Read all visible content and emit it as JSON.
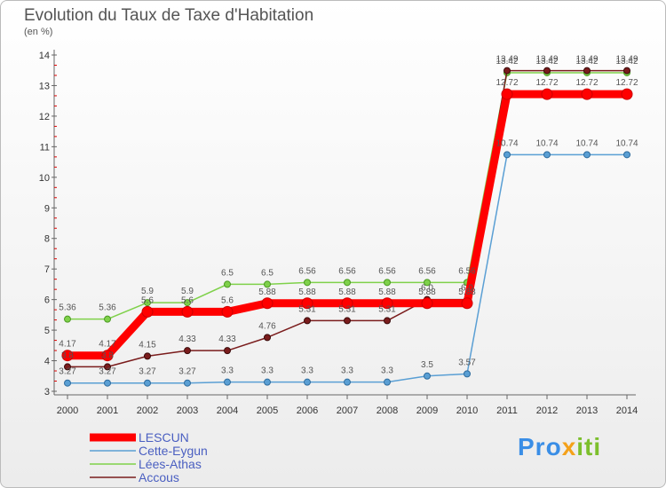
{
  "chart_data": {
    "type": "line",
    "title": "Evolution du Taux de Taxe d'Habitation",
    "ylabel": "(en %)",
    "xlabel": "",
    "x": [
      "2000",
      "2001",
      "2002",
      "2003",
      "2004",
      "2005",
      "2006",
      "2007",
      "2008",
      "2009",
      "2010",
      "2011",
      "2012",
      "2013",
      "2014"
    ],
    "ylim": [
      3,
      14
    ],
    "yticks": [
      3,
      4,
      5,
      6,
      7,
      8,
      9,
      10,
      11,
      12,
      13,
      14
    ],
    "series": [
      {
        "name": "LESCUN",
        "color": "#ff0000",
        "values": [
          4.17,
          4.17,
          5.6,
          5.6,
          5.6,
          5.88,
          5.88,
          5.88,
          5.88,
          5.88,
          5.88,
          12.72,
          12.72,
          12.72,
          12.72
        ],
        "labels": [
          "4.17",
          "4.17",
          "5.6",
          "5.6",
          "5.6",
          "5.88",
          "5.88",
          "5.88",
          "5.88",
          "5.88",
          "5.88",
          "12.72",
          "12.72",
          "12.72",
          "12.72"
        ]
      },
      {
        "name": "Cette-Eygun",
        "color": "#5a9fd4",
        "values": [
          3.27,
          3.27,
          3.27,
          3.27,
          3.3,
          3.3,
          3.3,
          3.3,
          3.3,
          3.5,
          3.57,
          10.74,
          10.74,
          10.74,
          10.74
        ],
        "labels": [
          "3.27",
          "3.27",
          "3.27",
          "3.27",
          "3.3",
          "3.3",
          "3.3",
          "3.3",
          "3.3",
          "3.5",
          "3.57",
          "10.74",
          "10.74",
          "10.74",
          "10.74"
        ]
      },
      {
        "name": "Lées-Athas",
        "color": "#7fd14a",
        "values": [
          5.36,
          5.36,
          5.9,
          5.9,
          6.5,
          6.5,
          6.56,
          6.56,
          6.56,
          6.56,
          6.56,
          13.42,
          13.42,
          13.42,
          13.42
        ],
        "labels": [
          "5.36",
          "5.36",
          "5.9",
          "5.9",
          "6.5",
          "6.5",
          "6.56",
          "6.56",
          "6.56",
          "6.56",
          "6.56",
          "13.42",
          "13.42",
          "13.42",
          "13.42"
        ]
      },
      {
        "name": "Accous",
        "color": "#7a1c1c",
        "values": [
          3.8,
          3.8,
          4.15,
          4.33,
          4.33,
          4.76,
          5.31,
          5.31,
          5.31,
          6.0,
          6.0,
          13.49,
          13.49,
          13.49,
          13.49
        ],
        "labels": [
          "3.8",
          "3.8",
          "4.15",
          "4.33",
          "4.33",
          "4.76",
          "5.31",
          "5.31",
          "5.31",
          "6.0",
          "6.0",
          "13.49",
          "13.49",
          "13.49",
          "13.49"
        ]
      }
    ],
    "grid": false,
    "legend_position": "bottom-left"
  },
  "logo": {
    "part1": "Pro",
    "part2": "x",
    "part3": "iti"
  }
}
